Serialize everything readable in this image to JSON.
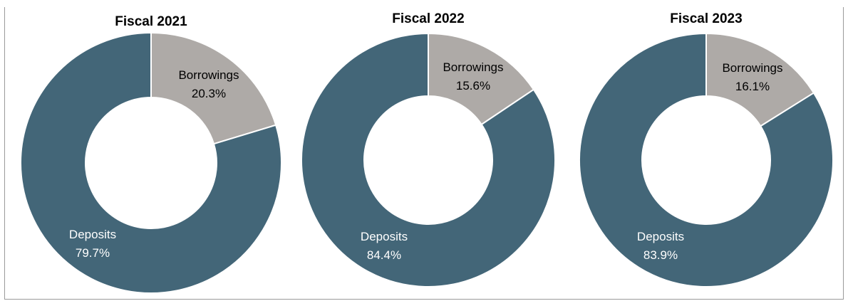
{
  "chart_data": [
    {
      "type": "pie",
      "title": "Fiscal 2021",
      "slices": [
        {
          "label": "Borrowings",
          "value": 20.3,
          "display": "20.3%",
          "color": "#aeaaa7"
        },
        {
          "label": "Deposits",
          "value": 79.7,
          "display": "79.7%",
          "color": "#436678"
        }
      ]
    },
    {
      "type": "pie",
      "title": "Fiscal 2022",
      "slices": [
        {
          "label": "Borrowings",
          "value": 15.6,
          "display": "15.6%",
          "color": "#aeaaa7"
        },
        {
          "label": "Deposits",
          "value": 84.4,
          "display": "84.4%",
          "color": "#436678"
        }
      ]
    },
    {
      "type": "pie",
      "title": "Fiscal 2023",
      "slices": [
        {
          "label": "Borrowings",
          "value": 16.1,
          "display": "16.1%",
          "color": "#aeaaa7"
        },
        {
          "label": "Deposits",
          "value": 83.9,
          "display": "83.9%",
          "color": "#436678"
        }
      ]
    }
  ]
}
